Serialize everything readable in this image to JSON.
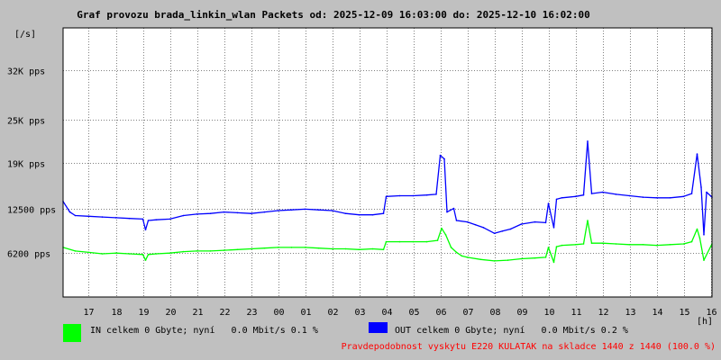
{
  "chart_data": {
    "type": "line",
    "title": "Graf provozu brada_linkin_wlan Packets od: 2025-12-09 16:03:00 do: 2025-12-10 16:02:00",
    "ylabel": "[/s]",
    "xlabel": "[h]",
    "ylim": [
      0,
      38000
    ],
    "xlim": [
      16.05,
      40.05
    ],
    "y_tick_values": [
      6200,
      12500,
      19000,
      25000,
      32000
    ],
    "y_tick_labels": [
      "6200 pps",
      "12500 pps",
      "19K pps",
      "25K pps",
      "32K pps"
    ],
    "x_tick_values": [
      17,
      18,
      19,
      20,
      21,
      22,
      23,
      24,
      25,
      26,
      27,
      28,
      29,
      30,
      31,
      32,
      33,
      34,
      35,
      36,
      37,
      38,
      39,
      40
    ],
    "x_tick_labels": [
      "17",
      "18",
      "19",
      "20",
      "21",
      "22",
      "23",
      "00",
      "01",
      "02",
      "03",
      "04",
      "05",
      "06",
      "07",
      "08",
      "09",
      "10",
      "11",
      "12",
      "13",
      "14",
      "15",
      "16"
    ],
    "grid": true,
    "series": [
      {
        "name": "IN",
        "color": "#00ff00",
        "x": [
          16.05,
          16.5,
          17.0,
          17.5,
          18.0,
          18.5,
          19.0,
          19.1,
          19.2,
          19.5,
          20.0,
          20.5,
          21.0,
          21.5,
          22.0,
          22.5,
          23.0,
          23.5,
          24.0,
          24.5,
          25.0,
          25.5,
          26.0,
          26.5,
          27.0,
          27.5,
          27.9,
          28.0,
          28.5,
          29.0,
          29.5,
          29.9,
          30.05,
          30.2,
          30.4,
          30.6,
          30.8,
          31.0,
          31.5,
          32.0,
          32.5,
          33.0,
          33.5,
          33.9,
          34.0,
          34.2,
          34.3,
          34.5,
          35.0,
          35.3,
          35.45,
          35.6,
          36.0,
          36.5,
          37.0,
          37.5,
          38.0,
          38.5,
          39.0,
          39.3,
          39.5,
          39.6,
          39.75,
          40.05
        ],
        "y": [
          7000,
          6500,
          6300,
          6100,
          6200,
          6100,
          6000,
          5200,
          6000,
          6100,
          6200,
          6400,
          6500,
          6500,
          6600,
          6700,
          6800,
          6900,
          7000,
          7000,
          7000,
          6900,
          6800,
          6800,
          6700,
          6800,
          6700,
          7800,
          7800,
          7800,
          7800,
          8000,
          9700,
          8800,
          7000,
          6300,
          5800,
          5600,
          5300,
          5100,
          5200,
          5400,
          5500,
          5600,
          7000,
          4900,
          7100,
          7300,
          7400,
          7500,
          10800,
          7600,
          7600,
          7500,
          7400,
          7400,
          7300,
          7400,
          7500,
          7800,
          9600,
          8300,
          5200,
          7500
        ]
      },
      {
        "name": "OUT",
        "color": "#0000ff",
        "x": [
          16.05,
          16.3,
          16.5,
          17.0,
          17.5,
          18.0,
          18.5,
          19.0,
          19.1,
          19.2,
          19.5,
          20.0,
          20.5,
          21.0,
          21.5,
          22.0,
          22.5,
          23.0,
          23.5,
          24.0,
          24.5,
          25.0,
          25.5,
          26.0,
          26.5,
          27.0,
          27.5,
          27.9,
          28.0,
          28.5,
          29.0,
          29.5,
          29.85,
          30.0,
          30.15,
          30.25,
          30.5,
          30.6,
          31.0,
          31.3,
          31.6,
          32.0,
          32.3,
          32.6,
          33.0,
          33.5,
          33.9,
          34.0,
          34.2,
          34.3,
          34.5,
          35.0,
          35.3,
          35.45,
          35.6,
          36.0,
          36.5,
          37.0,
          37.5,
          38.0,
          38.5,
          39.0,
          39.3,
          39.5,
          39.65,
          39.75,
          39.85,
          40.05
        ],
        "y": [
          13500,
          12000,
          11500,
          11400,
          11300,
          11200,
          11100,
          11000,
          9500,
          10800,
          10900,
          11000,
          11500,
          11700,
          11800,
          12000,
          11900,
          11800,
          12000,
          12200,
          12300,
          12400,
          12300,
          12200,
          11800,
          11600,
          11600,
          11800,
          14200,
          14300,
          14300,
          14400,
          14500,
          20000,
          19500,
          12000,
          12500,
          10800,
          10600,
          10200,
          9800,
          9000,
          9300,
          9600,
          10300,
          10600,
          10500,
          13200,
          9800,
          13800,
          14000,
          14200,
          14400,
          22000,
          14600,
          14800,
          14500,
          14300,
          14100,
          14000,
          14000,
          14200,
          14600,
          20200,
          15500,
          8800,
          14800,
          14100
        ]
      }
    ]
  },
  "legend": {
    "in_label": "IN celkem 0 Gbyte; nyní   0.0 Mbit/s 0.1 %",
    "out_label": "OUT celkem 0 Gbyte; nyní   0.0 Mbit/s 0.2 %",
    "in_color": "#00ff00",
    "out_color": "#0000ff"
  },
  "footer_note": "Pravdepodobnost vyskytu E220 KULATAK na skladce 1440 z 1440 (100.0 %)"
}
